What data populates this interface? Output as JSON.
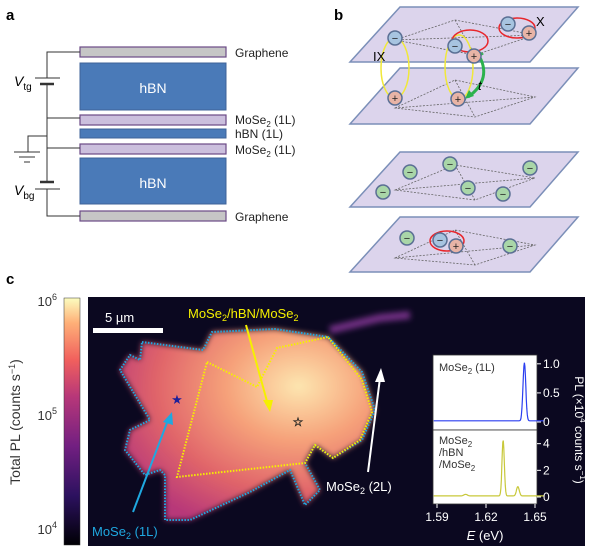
{
  "panels": {
    "a": {
      "label": "a",
      "layers": [
        "Graphene",
        "hBN",
        "MoSe2 (1L)",
        "hBN (1L)",
        "MoSe2 (1L)",
        "hBN",
        "Graphene"
      ],
      "layer_label_graphene_top": "Graphene",
      "layer_label_hbn_top": "hBN",
      "layer_label_mose2_top_main": "MoSe",
      "layer_label_mose2_top_sub": "2",
      "layer_label_mose2_top_suffix": " (1L)",
      "layer_label_hbn_1l": "hBN (1L)",
      "layer_label_mose2_bottom_main": "MoSe",
      "layer_label_mose2_bottom_sub": "2",
      "layer_label_mose2_bottom_suffix": " (1L)",
      "layer_label_hbn_bottom": "hBN",
      "layer_label_graphene_bottom": "Graphene",
      "vtg_main": "V",
      "vtg_sub": "tg",
      "vbg_main": "V",
      "vbg_sub": "bg"
    },
    "b": {
      "label": "b",
      "ix_label": "IX",
      "x_label": "X",
      "t_label": "t",
      "minus": "−",
      "plus": "+"
    },
    "c": {
      "label": "c",
      "colorbar": {
        "title_main": "Total PL (counts s",
        "title_sup": "−1",
        "title_end": ")",
        "ticks": [
          {
            "base": "10",
            "exp": "6"
          },
          {
            "base": "10",
            "exp": "5"
          },
          {
            "base": "10",
            "exp": "4"
          }
        ]
      },
      "scale_bar": "5 µm",
      "annotation_hetero": {
        "a": "MoSe",
        "b": "2",
        "c": "/hBN/MoSe",
        "d": "2"
      },
      "annotation_1l": {
        "a": "MoSe",
        "b": "2",
        "c": " (1L)"
      },
      "annotation_2l": {
        "a": "MoSe",
        "b": "2",
        "c": " (2L)"
      },
      "colors": {
        "mono": "#1fa8e0",
        "hetero": "#f5f000",
        "white": "#ffffff"
      }
    }
  },
  "chart_data": {
    "type": "line",
    "xlabel_main": "E",
    "xlabel_unit": " (eV)",
    "ylabel": {
      "a": "PL (×10",
      "b": "4",
      "c": " counts s",
      "d": "−1",
      "e": ")"
    },
    "xlim": [
      1.588,
      1.656
    ],
    "x_ticks": [
      "1.59",
      "1.62",
      "1.65"
    ],
    "series": [
      {
        "name": "MoSe2 (1L)",
        "label_a": "MoSe",
        "label_b": "2",
        "label_c": " (1L)",
        "color": "#2b3ff0",
        "ylim": [
          0,
          1.1
        ],
        "y_ticks": [
          "1.0",
          "0.5",
          "0"
        ],
        "y_tick_values": [
          1.0,
          0.5,
          0
        ],
        "peaks": [
          {
            "x": 1.6435,
            "y": 1.0,
            "w": 0.0012
          }
        ],
        "baseline": 0.02
      },
      {
        "name": "MoSe2/hBN/MoSe2",
        "label_l1a": "MoSe",
        "label_l1b": "2",
        "label_l2": "/hBN",
        "label_l3a": "/MoSe",
        "label_l3b": "2",
        "color": "#c8c83a",
        "ylim": [
          0,
          4.8
        ],
        "y_ticks": [
          "4",
          "2",
          "0"
        ],
        "y_tick_values": [
          4,
          2,
          0
        ],
        "peaks": [
          {
            "x": 1.6305,
            "y": 4.2,
            "w": 0.001
          },
          {
            "x": 1.6395,
            "y": 0.7,
            "w": 0.0012
          },
          {
            "x": 1.6075,
            "y": 0.12,
            "w": 0.0015
          }
        ],
        "baseline": 0.08
      }
    ]
  }
}
